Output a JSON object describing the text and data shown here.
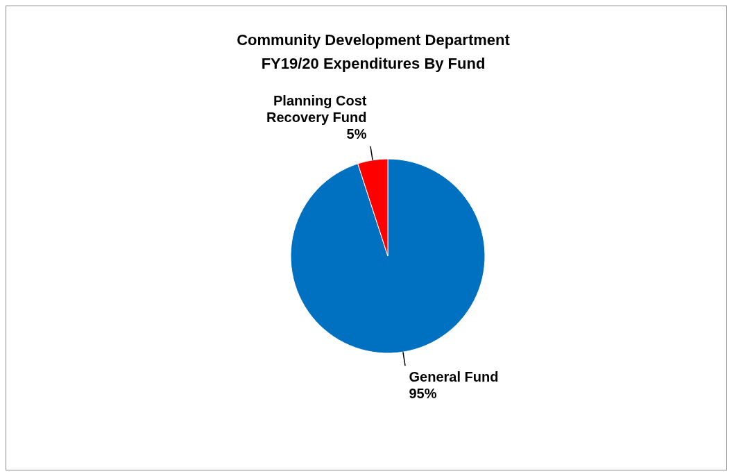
{
  "chart_data": {
    "type": "pie",
    "title": "Community Development Department\nFY19/20 Expenditures By Fund",
    "categories": [
      "General Fund",
      "Planning Cost Recovery Fund"
    ],
    "values": [
      95,
      5
    ],
    "colors": [
      "#0070c0",
      "#ff0000"
    ],
    "value_labels": [
      "95%",
      "5%"
    ]
  }
}
